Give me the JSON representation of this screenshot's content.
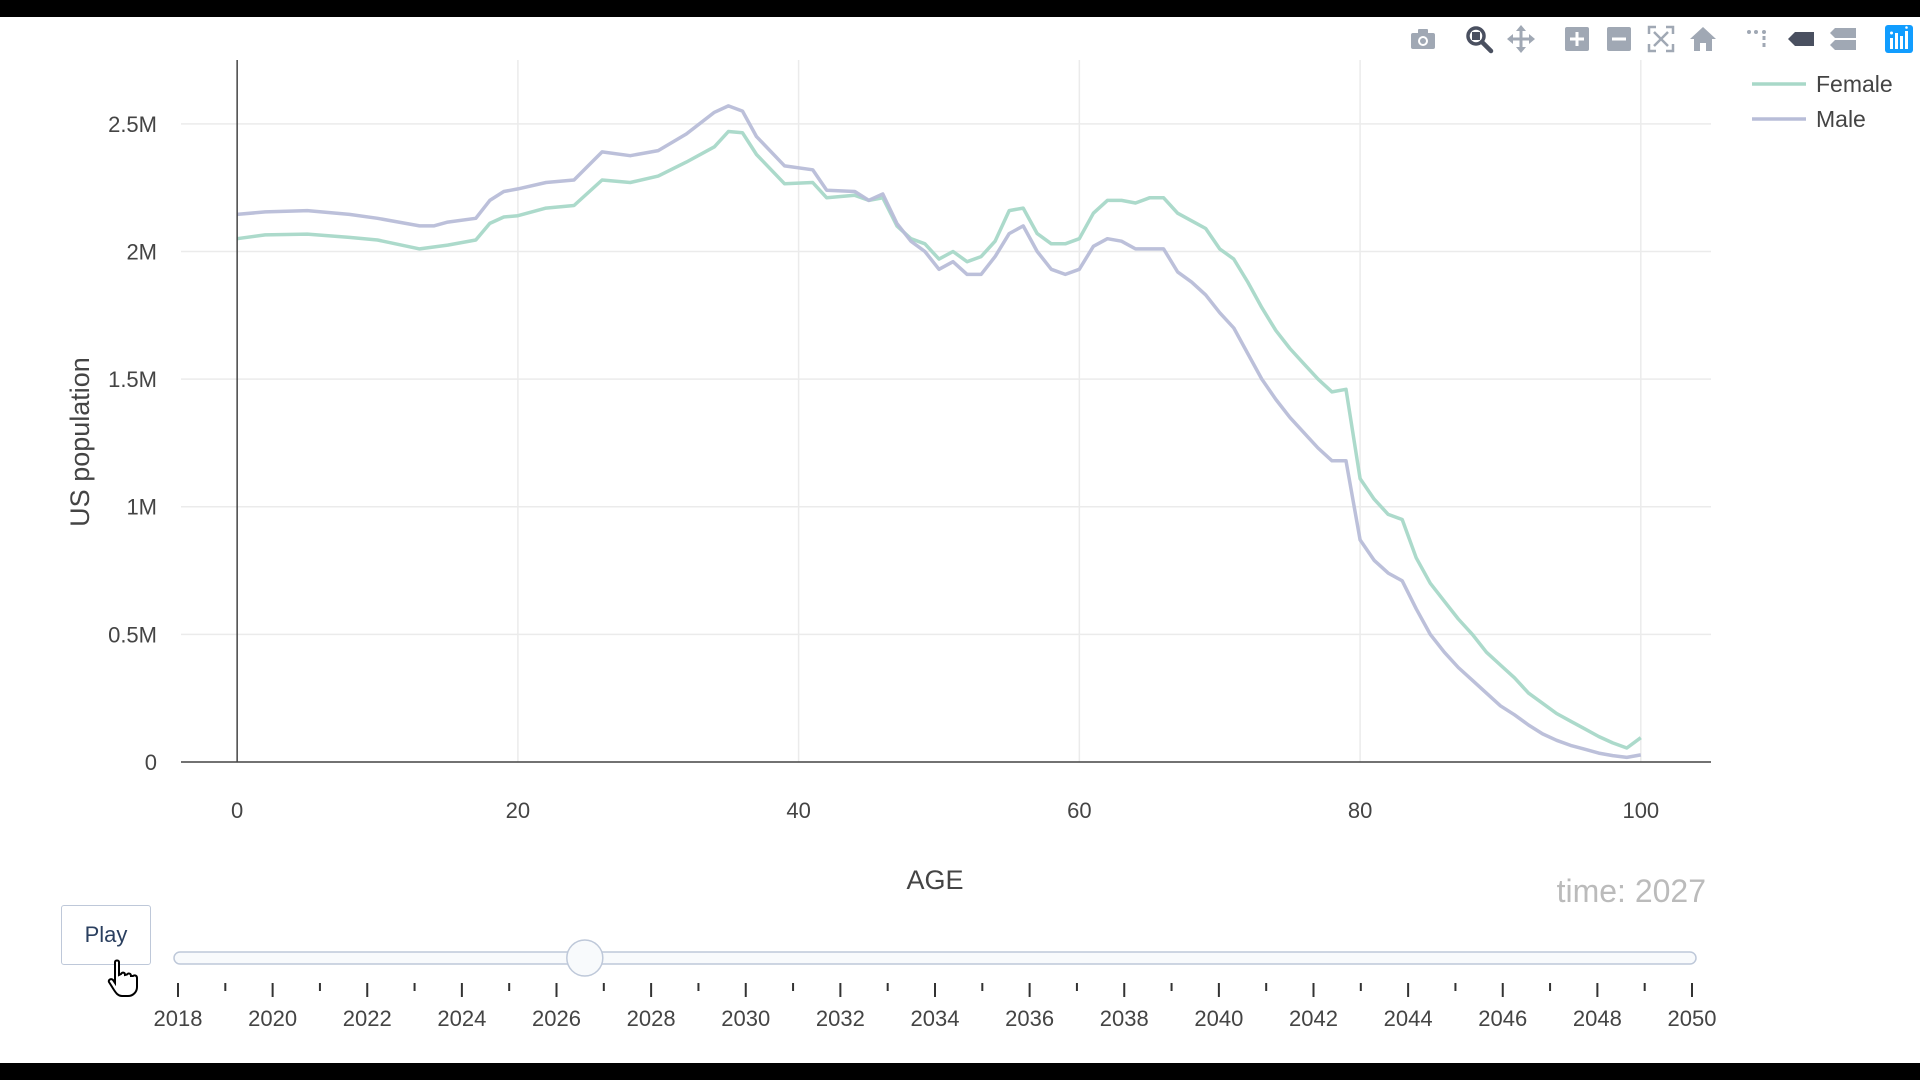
{
  "modebar": {
    "icons": [
      "camera-icon",
      "zoom-icon",
      "pan-icon",
      "zoom-in-icon",
      "zoom-out-icon",
      "autoscale-icon",
      "reset-axes-icon",
      "spike-lines-icon",
      "hover-closest-icon",
      "hover-compare-icon",
      "plotly-logo-icon"
    ]
  },
  "colors": {
    "female": "#a8d8c8",
    "male": "#b8bdd8",
    "grid": "#ebebeb",
    "axis": "#444444",
    "text": "#444444"
  },
  "chart_data": {
    "type": "line",
    "xlabel": "AGE",
    "ylabel": "US population",
    "xlim": [
      -4,
      105
    ],
    "ylim": [
      0,
      2750000
    ],
    "xticks": [
      0,
      20,
      40,
      60,
      80,
      100
    ],
    "xtick_labels": [
      "0",
      "20",
      "40",
      "60",
      "80",
      "100"
    ],
    "yticks": [
      0,
      500000,
      1000000,
      1500000,
      2000000,
      2500000
    ],
    "ytick_labels": [
      "0",
      "0.5M",
      "1M",
      "1.5M",
      "2M",
      "2.5M"
    ],
    "grid": true,
    "legend_position": "top-right",
    "series": [
      {
        "name": "Female",
        "x": [
          0,
          2,
          5,
          8,
          10,
          13,
          15,
          17,
          18,
          19,
          20,
          22,
          24,
          26,
          28,
          30,
          32,
          34,
          35,
          36,
          37,
          39,
          41,
          42,
          44,
          45,
          46,
          47,
          48,
          49,
          50,
          51,
          52,
          53,
          54,
          55,
          56,
          57,
          58,
          59,
          60,
          61,
          62,
          63,
          64,
          65,
          66,
          67,
          68,
          69,
          70,
          71,
          72,
          73,
          74,
          75,
          76,
          77,
          78,
          79,
          80,
          81,
          82,
          83,
          84,
          85,
          86,
          87,
          88,
          89,
          90,
          91,
          92,
          93,
          94,
          95,
          96,
          97,
          98,
          99,
          100
        ],
        "y": [
          2050000,
          2065000,
          2068000,
          2055000,
          2045000,
          2010000,
          2025000,
          2045000,
          2110000,
          2135000,
          2140000,
          2170000,
          2180000,
          2280000,
          2270000,
          2295000,
          2350000,
          2410000,
          2470000,
          2465000,
          2380000,
          2265000,
          2270000,
          2210000,
          2220000,
          2200000,
          2210000,
          2100000,
          2050000,
          2030000,
          1970000,
          2000000,
          1960000,
          1980000,
          2040000,
          2160000,
          2170000,
          2070000,
          2030000,
          2030000,
          2050000,
          2150000,
          2200000,
          2200000,
          2190000,
          2210000,
          2210000,
          2150000,
          2120000,
          2090000,
          2010000,
          1970000,
          1880000,
          1780000,
          1690000,
          1620000,
          1560000,
          1500000,
          1450000,
          1460000,
          1110000,
          1030000,
          970000,
          950000,
          800000,
          700000,
          630000,
          560000,
          500000,
          430000,
          380000,
          330000,
          270000,
          230000,
          190000,
          160000,
          130000,
          100000,
          75000,
          55000,
          95000
        ]
      },
      {
        "name": "Male",
        "x": [
          0,
          2,
          5,
          8,
          10,
          13,
          14,
          15,
          17,
          18,
          19,
          20,
          22,
          24,
          26,
          28,
          30,
          32,
          34,
          35,
          36,
          37,
          39,
          41,
          42,
          44,
          45,
          46,
          47,
          48,
          49,
          50,
          51,
          52,
          53,
          54,
          55,
          56,
          57,
          58,
          59,
          60,
          61,
          62,
          63,
          64,
          65,
          66,
          67,
          68,
          69,
          70,
          71,
          72,
          73,
          74,
          75,
          76,
          77,
          78,
          79,
          80,
          81,
          82,
          83,
          84,
          85,
          86,
          87,
          88,
          89,
          90,
          91,
          92,
          93,
          94,
          95,
          96,
          97,
          98,
          99,
          100
        ],
        "y": [
          2145000,
          2155000,
          2160000,
          2145000,
          2130000,
          2100000,
          2100000,
          2115000,
          2130000,
          2200000,
          2235000,
          2245000,
          2270000,
          2280000,
          2390000,
          2375000,
          2395000,
          2460000,
          2545000,
          2570000,
          2550000,
          2450000,
          2335000,
          2320000,
          2240000,
          2235000,
          2200000,
          2225000,
          2110000,
          2040000,
          2000000,
          1930000,
          1960000,
          1910000,
          1910000,
          1980000,
          2070000,
          2100000,
          2000000,
          1930000,
          1910000,
          1930000,
          2020000,
          2050000,
          2040000,
          2010000,
          2010000,
          2010000,
          1920000,
          1880000,
          1830000,
          1760000,
          1700000,
          1600000,
          1500000,
          1420000,
          1350000,
          1290000,
          1230000,
          1180000,
          1180000,
          870000,
          790000,
          740000,
          710000,
          600000,
          500000,
          430000,
          370000,
          320000,
          270000,
          220000,
          185000,
          145000,
          110000,
          85000,
          65000,
          50000,
          35000,
          25000,
          18000,
          28000
        ]
      }
    ]
  },
  "animation": {
    "play_label": "Play",
    "time_prefix": "time:",
    "time_value": "2027",
    "years": [
      "2018",
      "2019",
      "2020",
      "2021",
      "2022",
      "2023",
      "2024",
      "2025",
      "2026",
      "2027",
      "2028",
      "2029",
      "2030",
      "2031",
      "2032",
      "2033",
      "2034",
      "2035",
      "2036",
      "2037",
      "2038",
      "2039",
      "2040",
      "2041",
      "2042",
      "2043",
      "2044",
      "2045",
      "2046",
      "2047",
      "2048",
      "2049",
      "2050"
    ],
    "current": "2027"
  }
}
